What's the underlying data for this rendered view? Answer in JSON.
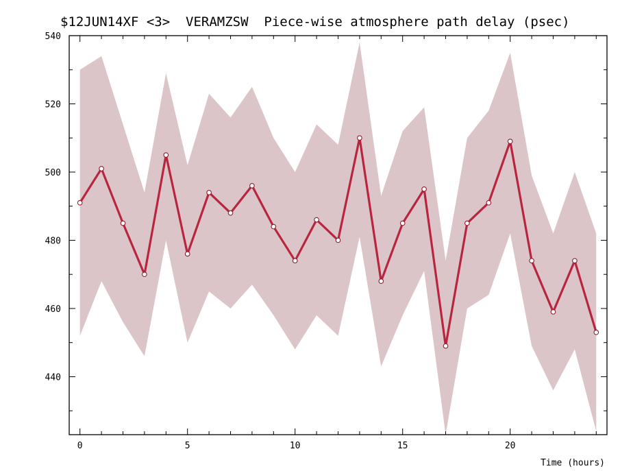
{
  "chart_data": {
    "type": "line",
    "title": "$12JUN14XF <3>  VERAMZSW  Piece-wise atmosphere path delay (psec)",
    "xlabel": "Time (hours)",
    "ylabel": "",
    "xlim": [
      -0.5,
      24.5
    ],
    "ylim": [
      423,
      540
    ],
    "x_ticks_major": [
      0,
      5,
      10,
      15,
      20
    ],
    "y_ticks_major": [
      440,
      460,
      480,
      500,
      520,
      540
    ],
    "grid": false,
    "colors": {
      "line": "#b8253d",
      "band": "#dcc5c8",
      "marker_fill": "#ffffff",
      "marker_stroke": "#8c1c2f"
    },
    "series": [
      {
        "x": [
          0,
          1,
          2,
          3,
          4,
          5,
          6,
          7,
          8,
          9,
          10,
          11,
          12,
          13,
          14,
          15,
          16,
          17,
          18,
          19,
          20,
          21,
          22,
          23,
          24
        ],
        "values": [
          491,
          501,
          485,
          470,
          505,
          476,
          494,
          488,
          496,
          484,
          474,
          486,
          480,
          510,
          468,
          485,
          495,
          449,
          485,
          491,
          509,
          474,
          459,
          474,
          453
        ],
        "upper": [
          530,
          534,
          514,
          494,
          529,
          502,
          523,
          516,
          525,
          510,
          500,
          514,
          508,
          538,
          493,
          512,
          519,
          474,
          510,
          518,
          535,
          499,
          482,
          500,
          482
        ],
        "lower": [
          452,
          468,
          456,
          446,
          480,
          450,
          465,
          460,
          467,
          458,
          448,
          458,
          452,
          481,
          443,
          458,
          471,
          423,
          460,
          464,
          482,
          449,
          436,
          448,
          424
        ]
      }
    ]
  }
}
